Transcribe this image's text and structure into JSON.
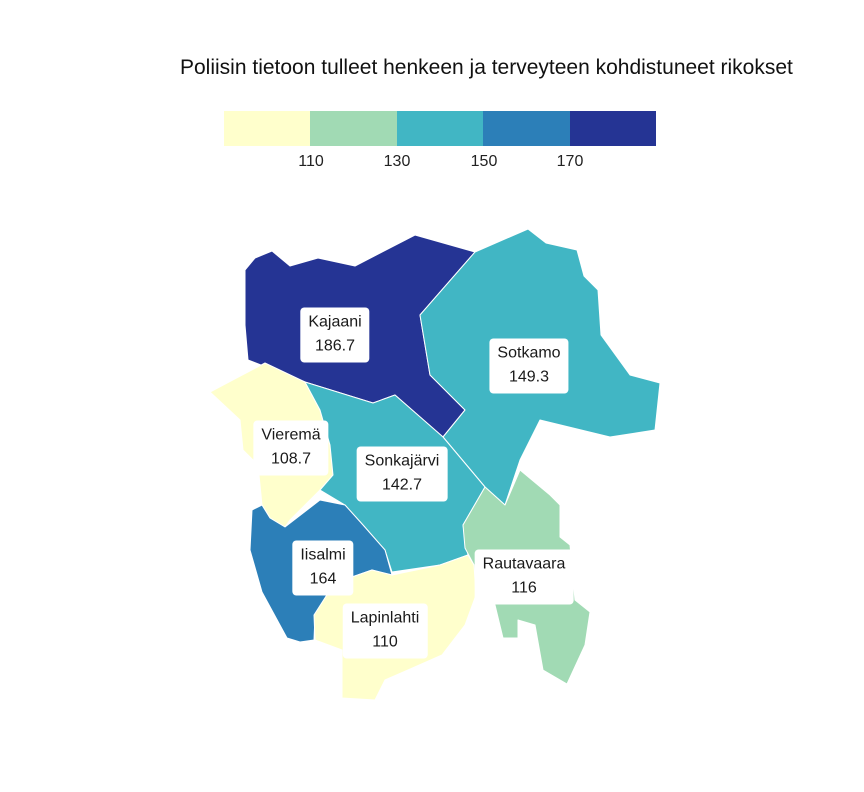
{
  "title": "Poliisin tietoon tulleet henkeen ja terveyteen kohdistuneet rikokset",
  "legend": {
    "bins": [
      {
        "color": "#ffffcc"
      },
      {
        "color": "#a1dab4"
      },
      {
        "color": "#41b6c4"
      },
      {
        "color": "#2c7fb8"
      },
      {
        "color": "#253494"
      }
    ],
    "ticks": [
      "110",
      "130",
      "150",
      "170"
    ]
  },
  "regions": [
    {
      "name": "Kajaani",
      "value": "186.7",
      "color": "#253494"
    },
    {
      "name": "Sotkamo",
      "value": "149.3",
      "color": "#41b6c4"
    },
    {
      "name": "Vieremä",
      "value": "108.7",
      "color": "#ffffcc"
    },
    {
      "name": "Sonkajärvi",
      "value": "142.7",
      "color": "#41b6c4"
    },
    {
      "name": "Iisalmi",
      "value": "164",
      "color": "#2c7fb8"
    },
    {
      "name": "Rautavaara",
      "value": "116",
      "color": "#a1dab4"
    },
    {
      "name": "Lapinlahti",
      "value": "110",
      "color": "#ffffcc"
    }
  ]
}
